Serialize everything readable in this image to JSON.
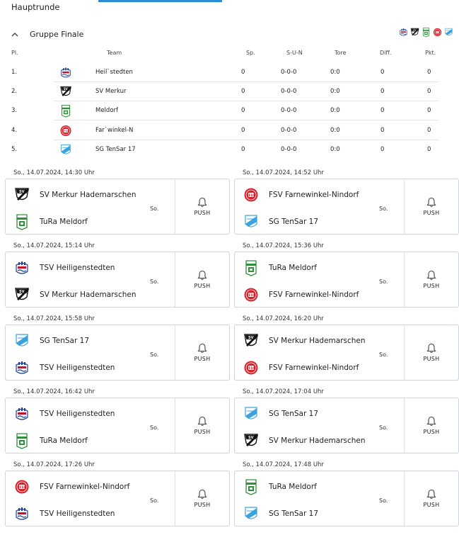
{
  "page": {
    "round_title": "Hauptrunde"
  },
  "group": {
    "name": "Gruppe Finale",
    "logos": [
      "heiligenstedten-crest-icon",
      "sv-merkur-crest-icon",
      "tura-meldorf-crest-icon",
      "farnewinkel-crest-icon",
      "tensar-crest-icon"
    ]
  },
  "table": {
    "headers": {
      "pl": "Pl.",
      "team": "Team",
      "sp": "Sp.",
      "sun": "S-U-N",
      "tore": "Tore",
      "diff": "Diff.",
      "pkt": "Pkt."
    },
    "rows": [
      {
        "pl": "1.",
        "team": "Heil`stedten",
        "logo": "heiligenstedten-crest-icon",
        "sp": "0",
        "sun": "0-0-0",
        "tore": "0:0",
        "diff": "0",
        "pkt": "0"
      },
      {
        "pl": "2.",
        "team": "SV Merkur",
        "logo": "sv-merkur-crest-icon",
        "sp": "0",
        "sun": "0-0-0",
        "tore": "0:0",
        "diff": "0",
        "pkt": "0"
      },
      {
        "pl": "3.",
        "team": "Meldorf",
        "logo": "tura-meldorf-crest-icon",
        "sp": "0",
        "sun": "0-0-0",
        "tore": "0:0",
        "diff": "0",
        "pkt": "0"
      },
      {
        "pl": "4.",
        "team": "Far`winkel-N",
        "logo": "farnewinkel-crest-icon",
        "sp": "0",
        "sun": "0-0-0",
        "tore": "0:0",
        "diff": "0",
        "pkt": "0"
      },
      {
        "pl": "5.",
        "team": "SG TenSar 17",
        "logo": "tensar-crest-icon",
        "sp": "0",
        "sun": "0-0-0",
        "tore": "0:0",
        "diff": "0",
        "pkt": "0"
      }
    ]
  },
  "matches": [
    {
      "date": "So., 14.07.2024, 14:30 Uhr",
      "home": "SV Merkur Hademarschen",
      "home_logo": "sv-merkur-crest-icon",
      "away": "TuRa Meldorf",
      "away_logo": "tura-meldorf-crest-icon",
      "day": "So.",
      "push": "PUSH"
    },
    {
      "date": "So., 14.07.2024, 14:52 Uhr",
      "home": "FSV Farnewinkel-Nindorf",
      "home_logo": "farnewinkel-crest-icon",
      "away": "SG TenSar 17",
      "away_logo": "tensar-crest-icon",
      "day": "So.",
      "push": "PUSH"
    },
    {
      "date": "So., 14.07.2024, 15:14 Uhr",
      "home": "TSV Heiligenstedten",
      "home_logo": "heiligenstedten-crest-icon",
      "away": "SV Merkur Hademarschen",
      "away_logo": "sv-merkur-crest-icon",
      "day": "So.",
      "push": "PUSH"
    },
    {
      "date": "So., 14.07.2024, 15:36 Uhr",
      "home": "TuRa Meldorf",
      "home_logo": "tura-meldorf-crest-icon",
      "away": "FSV Farnewinkel-Nindorf",
      "away_logo": "farnewinkel-crest-icon",
      "day": "So.",
      "push": "PUSH"
    },
    {
      "date": "So., 14.07.2024, 15:58 Uhr",
      "home": "SG TenSar 17",
      "home_logo": "tensar-crest-icon",
      "away": "TSV Heiligenstedten",
      "away_logo": "heiligenstedten-crest-icon",
      "day": "So.",
      "push": "PUSH"
    },
    {
      "date": "So., 14.07.2024, 16:20 Uhr",
      "home": "SV Merkur Hademarschen",
      "home_logo": "sv-merkur-crest-icon",
      "away": "FSV Farnewinkel-Nindorf",
      "away_logo": "farnewinkel-crest-icon",
      "day": "So.",
      "push": "PUSH"
    },
    {
      "date": "So., 14.07.2024, 16:42 Uhr",
      "home": "TSV Heiligenstedten",
      "home_logo": "heiligenstedten-crest-icon",
      "away": "TuRa Meldorf",
      "away_logo": "tura-meldorf-crest-icon",
      "day": "So.",
      "push": "PUSH"
    },
    {
      "date": "So., 14.07.2024, 17:04 Uhr",
      "home": "SG TenSar 17",
      "home_logo": "tensar-crest-icon",
      "away": "SV Merkur Hademarschen",
      "away_logo": "sv-merkur-crest-icon",
      "day": "So.",
      "push": "PUSH"
    },
    {
      "date": "So., 14.07.2024, 17:26 Uhr",
      "home": "FSV Farnewinkel-Nindorf",
      "home_logo": "farnewinkel-crest-icon",
      "away": "TSV Heiligenstedten",
      "away_logo": "heiligenstedten-crest-icon",
      "day": "So.",
      "push": "PUSH"
    },
    {
      "date": "So., 14.07.2024, 17:48 Uhr",
      "home": "TuRa Meldorf",
      "home_logo": "tura-meldorf-crest-icon",
      "away": "SG TenSar 17",
      "away_logo": "tensar-crest-icon",
      "day": "So.",
      "push": "PUSH"
    }
  ],
  "colors": {
    "accent": "#2a8bd8",
    "border": "#cfd4da",
    "divider": "#e4e4e4",
    "farnewinkel_red": "#d9212b",
    "tensar_blue": "#3aa3dd",
    "meldorf_green": "#2f8f3a"
  }
}
